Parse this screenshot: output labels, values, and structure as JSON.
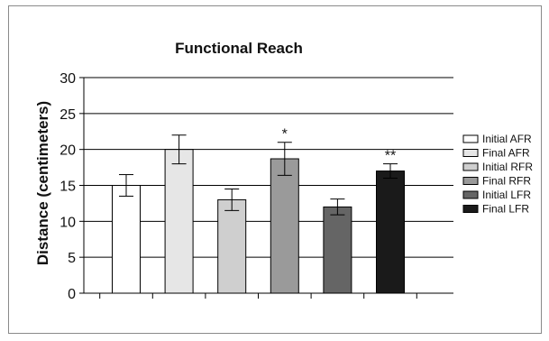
{
  "chart_data": {
    "type": "bar",
    "title": "Functional Reach",
    "xlabel": "",
    "ylabel": "Distance (centimeters)",
    "ylim": [
      0,
      30
    ],
    "yticks": [
      0,
      5,
      10,
      15,
      20,
      25,
      30
    ],
    "grid": true,
    "legend_position": "right",
    "categories": [
      "Initial AFR",
      "Final AFR",
      "Initial RFR",
      "Final RFR",
      "Initial LFR",
      "Final LFR"
    ],
    "values": [
      15.0,
      20.0,
      13.0,
      18.7,
      12.0,
      17.0
    ],
    "errors": [
      1.5,
      2.0,
      1.5,
      2.3,
      1.1,
      1.0
    ],
    "colors": [
      "#ffffff",
      "#e6e6e6",
      "#cfcfcf",
      "#9a9a9a",
      "#656565",
      "#1a1a1a"
    ],
    "annotations": [
      "",
      "",
      "",
      "*",
      "",
      "**"
    ]
  }
}
